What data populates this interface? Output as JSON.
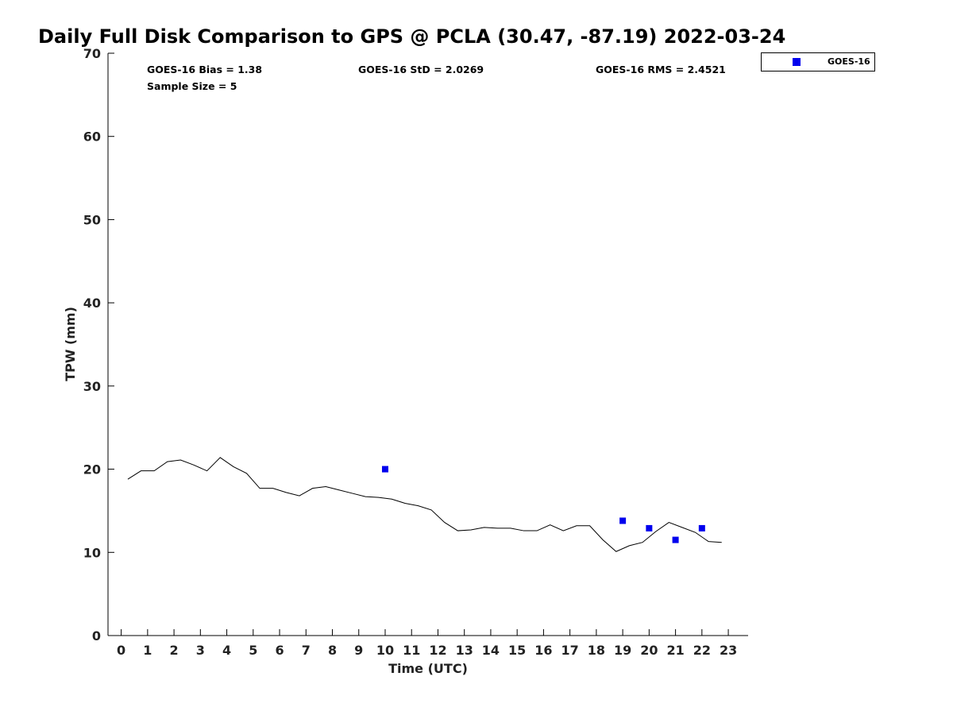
{
  "chart_data": {
    "type": "scatter",
    "title": "Daily Full Disk Comparison to GPS @ PCLA (30.47, -87.19) 2022-03-24",
    "xlabel": "Time (UTC)",
    "ylabel": "TPW (mm)",
    "xlim": [
      -0.5,
      23.75
    ],
    "ylim": [
      0,
      70
    ],
    "x_ticks": [
      "0",
      "1",
      "2",
      "3",
      "4",
      "5",
      "6",
      "7",
      "8",
      "9",
      "10",
      "11",
      "12",
      "13",
      "14",
      "15",
      "16",
      "17",
      "18",
      "19",
      "20",
      "21",
      "22",
      "23"
    ],
    "y_ticks": [
      "0",
      "10",
      "20",
      "30",
      "40",
      "50",
      "60",
      "70"
    ],
    "grid": false,
    "legend_position": "top-right",
    "stats": {
      "bias": "GOES-16 Bias = 1.38",
      "std": "GOES-16 StD = 2.0269",
      "rms": "GOES-16 RMS = 2.4521",
      "sample_size": "Sample Size = 5"
    },
    "series": [
      {
        "name": "GOES-16",
        "marker": "square",
        "color": "#0000ee",
        "x": [
          10,
          19,
          20,
          21,
          22
        ],
        "y": [
          20.0,
          13.8,
          12.9,
          11.5,
          12.9
        ]
      },
      {
        "line": true,
        "color": "#000000",
        "x": [
          0.25,
          0.75,
          1.25,
          1.75,
          2.25,
          2.75,
          3.25,
          3.75,
          4.25,
          4.75,
          5.25,
          5.75,
          6.25,
          6.75,
          7.25,
          7.75,
          8.25,
          8.75,
          9.25,
          9.75,
          10.25,
          10.75,
          11.25,
          11.75,
          12.25,
          12.75,
          13.25,
          13.75,
          14.25,
          14.75,
          15.25,
          15.75,
          16.25,
          16.75,
          17.25,
          17.75,
          18.25,
          18.75,
          19.25,
          19.75,
          20.25,
          20.75,
          21.25,
          21.75,
          22.25,
          22.75
        ],
        "y": [
          18.8,
          19.8,
          19.8,
          20.9,
          21.1,
          20.5,
          19.8,
          21.4,
          20.3,
          19.5,
          17.7,
          17.7,
          17.2,
          16.8,
          17.7,
          17.9,
          17.5,
          17.1,
          16.7,
          16.6,
          16.4,
          15.9,
          15.6,
          15.1,
          13.6,
          12.6,
          12.7,
          13.0,
          12.9,
          12.9,
          12.6,
          12.6,
          13.3,
          12.6,
          13.2,
          13.2,
          11.5,
          10.1,
          10.8,
          11.2,
          12.5,
          13.6,
          13.0,
          12.4,
          11.3,
          11.2
        ]
      }
    ]
  }
}
